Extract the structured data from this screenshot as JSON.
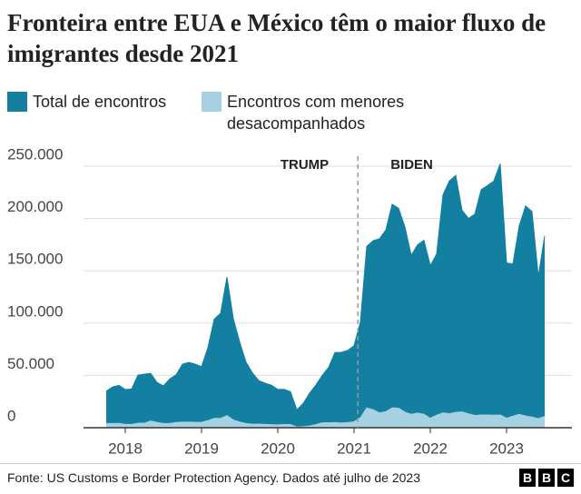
{
  "chart_data": {
    "type": "area",
    "title": "Fronteira entre EUA e México têm o maior fluxo de imigrantes desde 2021",
    "source": "Fonte: US Customs e Border Protection Agency. Dados até julho de 2023",
    "logo": "BBC",
    "categories": [
      null,
      null,
      null,
      "2018",
      null,
      null,
      null,
      null,
      null,
      null,
      null,
      null,
      null,
      null,
      null,
      "2019",
      null,
      null,
      null,
      null,
      null,
      null,
      null,
      null,
      null,
      null,
      null,
      "2020",
      null,
      null,
      null,
      null,
      null,
      null,
      null,
      null,
      null,
      null,
      null,
      "2021",
      null,
      null,
      null,
      null,
      null,
      null,
      null,
      null,
      null,
      null,
      null,
      "2022",
      null,
      null,
      null,
      null,
      null,
      null,
      null,
      null,
      null,
      null,
      null,
      "2023",
      null,
      null,
      null,
      null,
      null,
      null
    ],
    "series": [
      {
        "name": "Total de encontros",
        "color": "#1380a1",
        "values": [
          34900,
          39000,
          40500,
          36500,
          37000,
          50300,
          51200,
          51900,
          43200,
          40000,
          46700,
          50600,
          60700,
          62500,
          60800,
          58300,
          76500,
          103700,
          109400,
          144000,
          104300,
          82000,
          62700,
          52500,
          45100,
          42600,
          40600,
          36600,
          36700,
          34400,
          17100,
          23200,
          33000,
          40900,
          50000,
          57700,
          71900,
          72100,
          73900,
          78400,
          101000,
          173300,
          178800,
          180600,
          189000,
          213600,
          209800,
          192000,
          164800,
          174800,
          179200,
          154900,
          166000,
          222600,
          235800,
          241100,
          207800,
          200100,
          204100,
          227500,
          231500,
          235800,
          252300,
          157400,
          156600,
          193200,
          211900,
          206700,
          144600,
          183500
        ]
      },
      {
        "name": "Encontros com menores desacompanhados",
        "color": "#a6d1e0",
        "values": [
          4000,
          4000,
          4100,
          3200,
          3200,
          4300,
          4300,
          6400,
          5100,
          4000,
          4100,
          5000,
          5300,
          5300,
          5100,
          5100,
          6800,
          8900,
          8900,
          11500,
          7400,
          5400,
          4000,
          3400,
          3400,
          3200,
          2900,
          2600,
          3100,
          3000,
          700,
          1000,
          1600,
          2900,
          4700,
          4800,
          4900,
          4500,
          4900,
          5700,
          9500,
          18900,
          17200,
          14200,
          15300,
          19000,
          18700,
          14800,
          12800,
          14000,
          12800,
          9000,
          12000,
          14200,
          13400,
          14700,
          15200,
          13300,
          11700,
          12100,
          12100,
          11900,
          12100,
          9000,
          11000,
          12800,
          11200,
          10100,
          8700,
          10800
        ]
      }
    ],
    "ylim": [
      0,
      250000
    ],
    "yticks": [
      0,
      {
        "value": 50000,
        "label": "50.000"
      },
      {
        "value": 100000,
        "label": "100.000"
      },
      {
        "value": 150000,
        "label": "150.000"
      },
      {
        "value": 200000,
        "label": "200.000"
      },
      {
        "value": 250000,
        "label": "250.000"
      }
    ],
    "grid": true,
    "annotations": [
      "TRUMP",
      "BIDEN"
    ]
  }
}
